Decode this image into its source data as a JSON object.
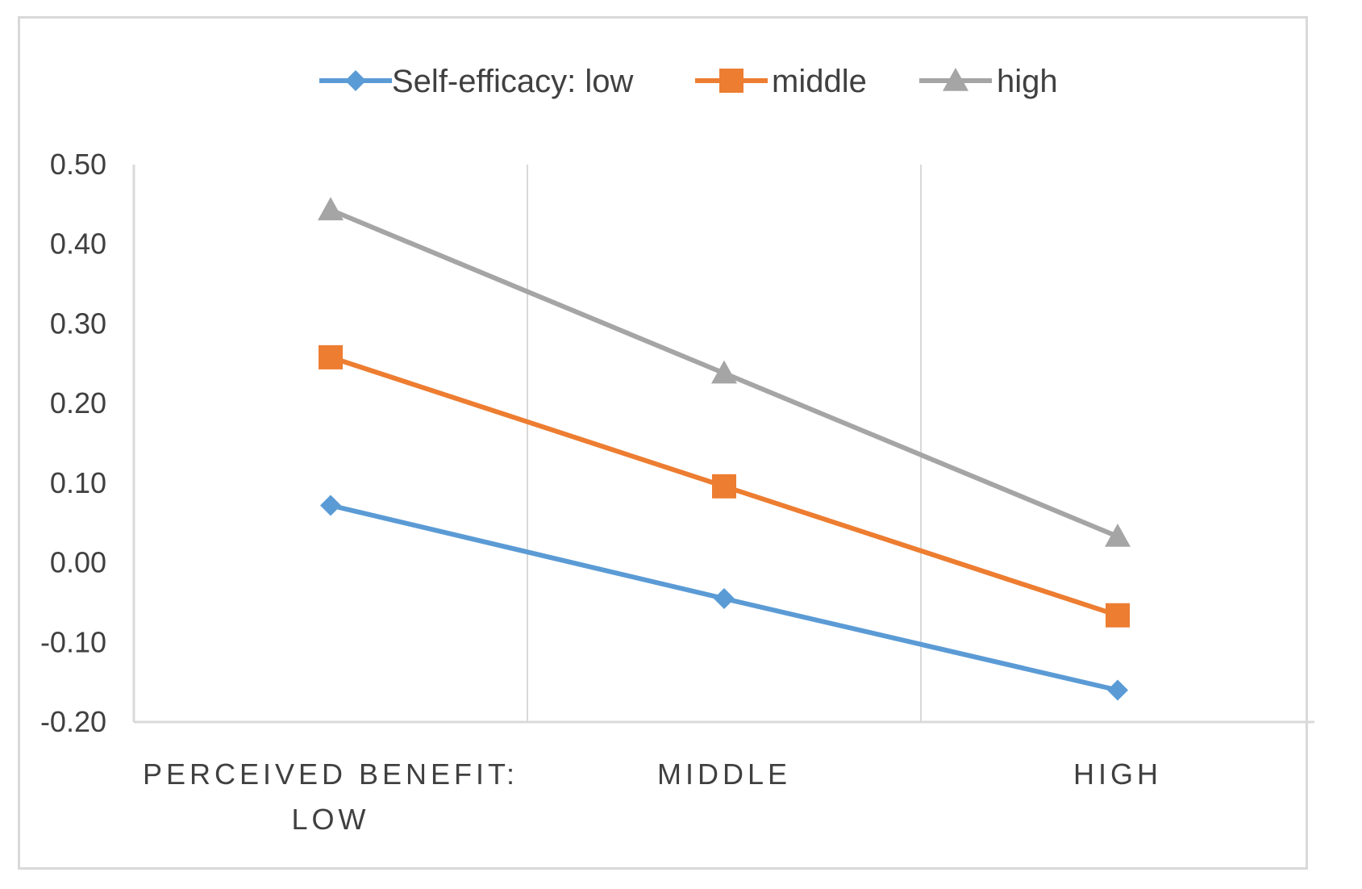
{
  "chart_data": {
    "type": "line",
    "title": "",
    "xlabel": "",
    "ylabel": "",
    "categories": [
      [
        "PERCEIVED BENEFIT:",
        "LOW"
      ],
      [
        "MIDDLE"
      ],
      [
        "HIGH"
      ]
    ],
    "yticks": [
      "0.50",
      "0.40",
      "0.30",
      "0.20",
      "0.10",
      "0.00",
      "-0.10",
      "-0.20"
    ],
    "ylim": [
      -0.2,
      0.5
    ],
    "grid": "vertical",
    "legend_position": "top",
    "series": [
      {
        "name": "Self-efficacy: low",
        "marker": "diamond",
        "color": "#5b9bd5",
        "values": [
          0.072,
          -0.045,
          -0.16
        ]
      },
      {
        "name": "middle",
        "marker": "square",
        "color": "#ed7d31",
        "values": [
          0.258,
          0.096,
          -0.066
        ]
      },
      {
        "name": "high",
        "marker": "triangle",
        "color": "#a5a5a5",
        "values": [
          0.443,
          0.238,
          0.033
        ]
      }
    ]
  }
}
